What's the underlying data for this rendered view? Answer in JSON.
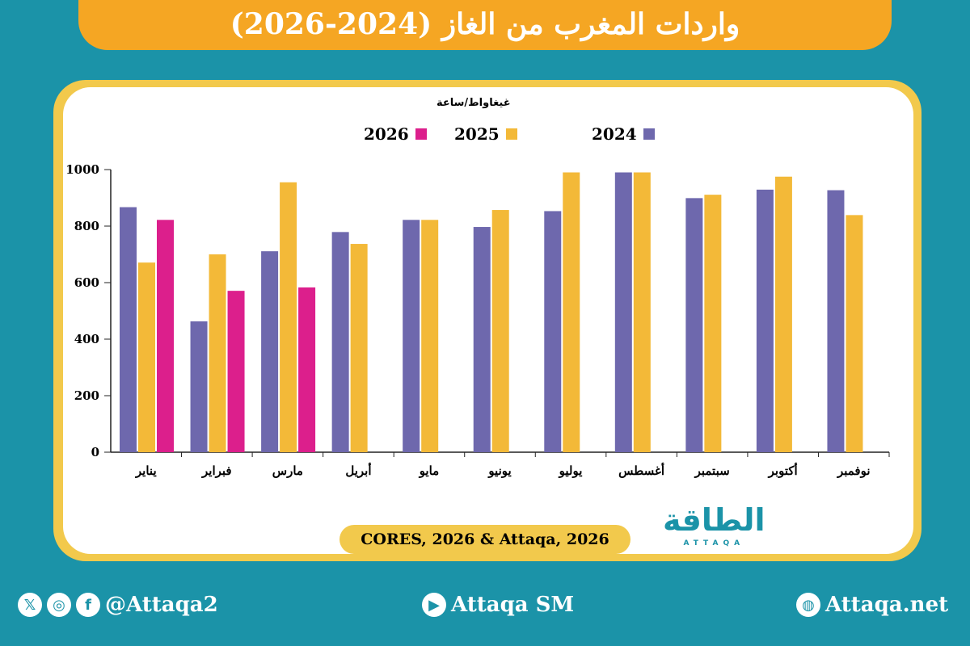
{
  "title": "واردات المغرب من الغاز (2024-2026)",
  "chart_data": {
    "type": "bar",
    "ylabel": "غيغاواط/ساعة",
    "ylim": [
      0,
      1000
    ],
    "yticks": [
      0,
      200,
      400,
      600,
      800,
      1000
    ],
    "categories": [
      "يناير",
      "فبراير",
      "مارس",
      "أبريل",
      "مايو",
      "يونيو",
      "يوليو",
      "أغسطس",
      "سبتمبر",
      "أكتوبر",
      "نوفمبر"
    ],
    "series": [
      {
        "name": "2024",
        "color": "#6e68ad",
        "values": [
          867,
          463,
          711,
          779,
          822,
          797,
          853,
          990,
          899,
          929,
          927
        ]
      },
      {
        "name": "2025",
        "color": "#f3b938",
        "values": [
          671,
          700,
          955,
          737,
          822,
          857,
          990,
          990,
          911,
          975,
          839
        ]
      },
      {
        "name": "2026",
        "color": "#dc1f8c",
        "values": [
          822,
          571,
          583,
          null,
          null,
          null,
          null,
          null,
          null,
          null,
          null
        ]
      }
    ],
    "legend_position": "top",
    "grid": false
  },
  "source": "CORES, 2026 & Attaqa, 2026",
  "logo": {
    "text": "الطاقة",
    "sub": "ATTAQA"
  },
  "footer": {
    "social": "@Attaqa2",
    "youtube": "Attaqa SM",
    "web": "Attaqa.net"
  }
}
